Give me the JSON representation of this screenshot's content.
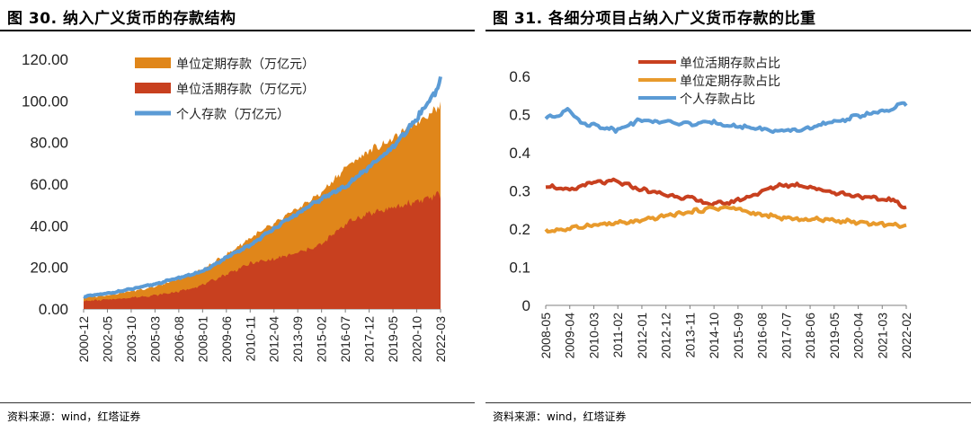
{
  "colors": {
    "orange": "#E0861A",
    "red": "#C8401F",
    "blue": "#5B9BD5",
    "orange_line": "#E89A2C"
  },
  "panels": [
    {
      "title": "图 30. 纳入广义货币的存款结构",
      "source": "资料来源：wind，红塔证券"
    },
    {
      "title": "图 31. 各细分项目占纳入广义货币存款的比重",
      "source": "资料来源：wind，红塔证券"
    }
  ],
  "chart_data": [
    {
      "type": "area",
      "title": "图 30. 纳入广义货币的存款结构",
      "x_start": 2000.917,
      "x_end": 2022.167,
      "ylim": [
        0,
        120
      ],
      "yticks": [
        "0.00",
        "20.00",
        "40.00",
        "60.00",
        "80.00",
        "100.00",
        "120.00"
      ],
      "xtick_labels": [
        "2000-12",
        "2002-05",
        "2003-10",
        "2005-03",
        "2006-08",
        "2008-01",
        "2009-06",
        "2010-11",
        "2012-04",
        "2013-09",
        "2015-02",
        "2016-07",
        "2017-12",
        "2019-05",
        "2020-10",
        "2022-03"
      ],
      "series": [
        {
          "name": "单位定期存款（万亿元）",
          "kind": "area",
          "color_key": "orange",
          "anchors": [
            [
              2000.917,
              5.5
            ],
            [
              2002.4,
              6.8
            ],
            [
              2003.8,
              8.6
            ],
            [
              2005.2,
              10.8
            ],
            [
              2006.6,
              14.3
            ],
            [
              2008.0,
              19.0
            ],
            [
              2009.5,
              26.5
            ],
            [
              2010.9,
              34.5
            ],
            [
              2012.3,
              41.0
            ],
            [
              2013.7,
              48.5
            ],
            [
              2015.1,
              56.0
            ],
            [
              2016.5,
              68.0
            ],
            [
              2017.9,
              76.0
            ],
            [
              2019.4,
              82.0
            ],
            [
              2020.8,
              90.0
            ],
            [
              2022.167,
              98.0
            ]
          ]
        },
        {
          "name": "单位活期存款（万亿元）",
          "kind": "area",
          "color_key": "red",
          "anchors": [
            [
              2000.917,
              3.8
            ],
            [
              2002.4,
              4.5
            ],
            [
              2003.8,
              5.5
            ],
            [
              2005.2,
              6.6
            ],
            [
              2006.6,
              8.4
            ],
            [
              2008.0,
              11.5
            ],
            [
              2009.5,
              17.0
            ],
            [
              2010.9,
              22.0
            ],
            [
              2012.3,
              24.0
            ],
            [
              2013.7,
              27.0
            ],
            [
              2015.1,
              31.0
            ],
            [
              2016.5,
              41.0
            ],
            [
              2017.9,
              46.0
            ],
            [
              2019.4,
              48.5
            ],
            [
              2020.8,
              52.0
            ],
            [
              2022.167,
              55.0
            ]
          ]
        },
        {
          "name": "个人存款（万亿元）",
          "kind": "line",
          "color_key": "blue",
          "anchors": [
            [
              2000.917,
              6.0
            ],
            [
              2002.4,
              7.5
            ],
            [
              2003.8,
              9.6
            ],
            [
              2005.2,
              12.0
            ],
            [
              2006.6,
              15.0
            ],
            [
              2008.0,
              18.0
            ],
            [
              2009.5,
              25.0
            ],
            [
              2010.9,
              31.0
            ],
            [
              2012.3,
              39.0
            ],
            [
              2013.7,
              46.0
            ],
            [
              2015.1,
              53.0
            ],
            [
              2016.5,
              59.0
            ],
            [
              2017.9,
              68.0
            ],
            [
              2019.4,
              78.0
            ],
            [
              2020.8,
              92.0
            ],
            [
              2021.9,
              105.0
            ],
            [
              2022.167,
              110.0
            ]
          ]
        }
      ]
    },
    {
      "type": "line",
      "title": "图 31. 各细分项目占纳入广义货币存款的比重",
      "x_start": 2008.333,
      "x_end": 2022.083,
      "ylim": [
        0,
        0.6
      ],
      "yticks": [
        "0",
        "0.1",
        "0.2",
        "0.3",
        "0.4",
        "0.5",
        "0.6"
      ],
      "xtick_labels": [
        "2008-05",
        "2009-04",
        "2010-03",
        "2011-02",
        "2012-01",
        "2012-12",
        "2013-11",
        "2014-10",
        "2015-09",
        "2016-08",
        "2017-07",
        "2018-06",
        "2019-05",
        "2020-04",
        "2021-03",
        "2022-02"
      ],
      "series": [
        {
          "name": "单位活期存款占比",
          "color_key": "red",
          "anchors": [
            [
              2008.333,
              0.315
            ],
            [
              2009.2,
              0.3
            ],
            [
              2010.0,
              0.32
            ],
            [
              2011.0,
              0.325
            ],
            [
              2011.9,
              0.305
            ],
            [
              2012.9,
              0.29
            ],
            [
              2013.9,
              0.28
            ],
            [
              2014.6,
              0.265
            ],
            [
              2015.4,
              0.27
            ],
            [
              2016.3,
              0.29
            ],
            [
              2017.2,
              0.315
            ],
            [
              2018.1,
              0.315
            ],
            [
              2019.0,
              0.3
            ],
            [
              2019.9,
              0.29
            ],
            [
              2020.8,
              0.28
            ],
            [
              2021.7,
              0.275
            ],
            [
              2021.9,
              0.255
            ],
            [
              2022.083,
              0.26
            ]
          ]
        },
        {
          "name": "单位定期存款占比",
          "color_key": "orange_line",
          "anchors": [
            [
              2008.333,
              0.195
            ],
            [
              2009.2,
              0.2
            ],
            [
              2010.0,
              0.21
            ],
            [
              2011.0,
              0.215
            ],
            [
              2011.9,
              0.22
            ],
            [
              2012.9,
              0.235
            ],
            [
              2013.9,
              0.245
            ],
            [
              2014.7,
              0.255
            ],
            [
              2015.5,
              0.255
            ],
            [
              2016.3,
              0.24
            ],
            [
              2017.2,
              0.23
            ],
            [
              2018.1,
              0.225
            ],
            [
              2019.0,
              0.225
            ],
            [
              2019.9,
              0.22
            ],
            [
              2020.8,
              0.215
            ],
            [
              2021.7,
              0.21
            ],
            [
              2022.083,
              0.21
            ]
          ]
        },
        {
          "name": "个人存款占比",
          "color_key": "blue",
          "anchors": [
            [
              2008.333,
              0.49
            ],
            [
              2008.9,
              0.5
            ],
            [
              2009.2,
              0.52
            ],
            [
              2009.6,
              0.48
            ],
            [
              2010.3,
              0.47
            ],
            [
              2011.0,
              0.46
            ],
            [
              2011.9,
              0.485
            ],
            [
              2012.9,
              0.48
            ],
            [
              2013.9,
              0.475
            ],
            [
              2014.7,
              0.48
            ],
            [
              2015.5,
              0.47
            ],
            [
              2016.3,
              0.465
            ],
            [
              2017.2,
              0.455
            ],
            [
              2018.1,
              0.46
            ],
            [
              2019.0,
              0.475
            ],
            [
              2019.9,
              0.49
            ],
            [
              2020.8,
              0.505
            ],
            [
              2021.5,
              0.51
            ],
            [
              2021.9,
              0.53
            ],
            [
              2022.083,
              0.525
            ]
          ]
        }
      ]
    }
  ]
}
